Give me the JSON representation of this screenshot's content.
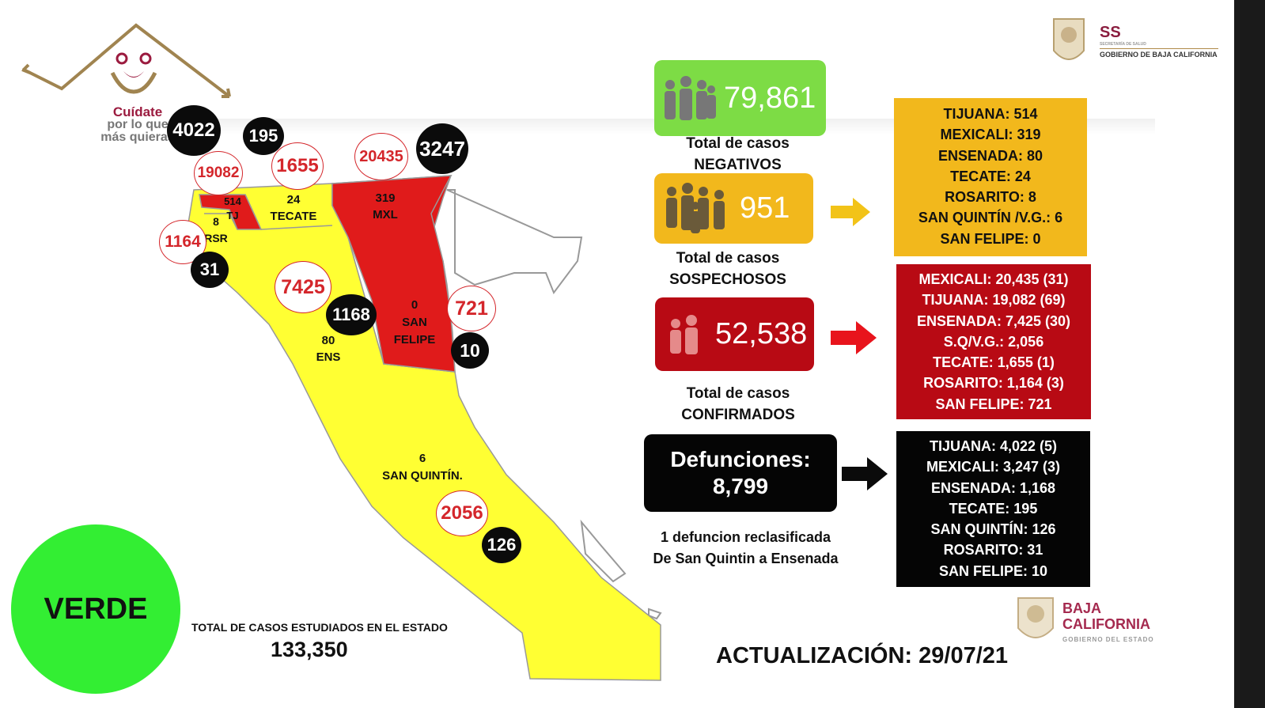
{
  "logo": {
    "line1": "Cuídate",
    "line2": "por lo que",
    "line3": "más quieras"
  },
  "map": {
    "regions": {
      "tj": "514\nTJ",
      "rsr": "8\nRSR",
      "tecate": "24\nTECATE",
      "mxl": "319\nMXL",
      "sanfelipe": "0\nSAN\nFELIPE",
      "ens": "80\nENS",
      "sanquintin": "6\nSAN QUINTÍN."
    },
    "red_circles": {
      "tj": "19082",
      "tecate": "1655",
      "mxl": "20435",
      "rsr": "1164",
      "ens": "7425",
      "sanfelipe": "721",
      "sanquintin": "2056"
    },
    "black_circles": {
      "tj": "4022",
      "tecate": "195",
      "mxl": "3247",
      "rsr": "31",
      "ens": "1168",
      "sanfelipe": "10",
      "sanquintin": "126"
    }
  },
  "status": "VERDE",
  "total": {
    "label": "TOTAL DE CASOS ESTUDIADOS EN EL ESTADO",
    "value": "133,350"
  },
  "negatives": {
    "value": "79,861",
    "caption1": "Total de casos",
    "caption2": "NEGATIVOS"
  },
  "suspects": {
    "value": "951",
    "caption1": "Total de casos",
    "caption2": "SOSPECHOSOS",
    "panel": [
      "TIJUANA: 514",
      "MEXICALI: 319",
      "ENSENADA: 80",
      "TECATE: 24",
      "ROSARITO: 8",
      "SAN QUINTÍN /V.G.: 6",
      "SAN FELIPE: 0"
    ]
  },
  "confirmed": {
    "value": "52,538",
    "caption1": "Total de casos",
    "caption2": "CONFIRMADOS",
    "panel": [
      "MEXICALI: 20,435 (31)",
      "TIJUANA: 19,082 (69)",
      "ENSENADA: 7,425 (30)",
      "S.Q/V.G.: 2,056",
      "TECATE: 1,655 (1)",
      "ROSARITO: 1,164  (3)",
      "SAN FELIPE: 721"
    ]
  },
  "deaths": {
    "title": "Defunciones:",
    "value": "8,799",
    "note1": "1 defuncion reclasificada",
    "note2": "De San Quintin a Ensenada",
    "panel": [
      "TIJUANA: 4,022 (5)",
      "MEXICALI: 3,247 (3)",
      "ENSENADA: 1,168",
      "TECATE: 195",
      "SAN QUINTÍN: 126",
      "ROSARITO: 31",
      "SAN FELIPE: 10"
    ]
  },
  "update": "ACTUALIZACIÓN: 29/07/21",
  "ss_logo": {
    "abbr": "SS",
    "small": "SECRETARÍA DE SALUD",
    "gov": "GOBIERNO DE BAJA CALIFORNIA"
  },
  "bc_logo": {
    "line1": "BAJA",
    "line2": "CALIFORNIA",
    "sub": "GOBIERNO DEL ESTADO"
  },
  "colors": {
    "green": "#7ddc45",
    "yellow": "#f2b81c",
    "red": "#b80a14",
    "map_yellow": "#ffff33",
    "map_red": "#e01b1b",
    "verde": "#33ee33"
  }
}
